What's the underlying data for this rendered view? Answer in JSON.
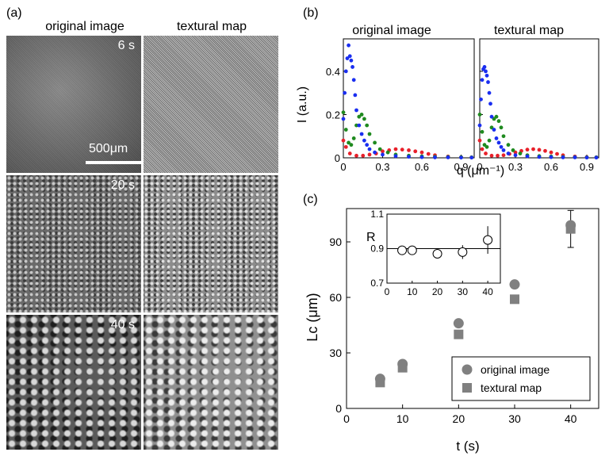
{
  "panel_a": {
    "label": "(a)",
    "col_headers": [
      "original image",
      "textural map"
    ],
    "rows": [
      {
        "time_label": "6 s"
      },
      {
        "time_label": "20 s"
      },
      {
        "time_label": "40 s"
      }
    ],
    "scale_bar_label": "500μm"
  },
  "panel_b": {
    "label": "(b)",
    "titles": [
      "original image",
      "textural map"
    ],
    "ylabel": "I (a.u.)",
    "xlabel": "q (μm⁻¹)",
    "yticks": [
      "0",
      "0.2",
      "0.4"
    ],
    "xticks": [
      "0",
      "0.3",
      "0.6",
      "0.9"
    ]
  },
  "panel_c": {
    "label": "(c)",
    "ylabel": "Lc (μm)",
    "xlabel": "t (s)",
    "yticks": [
      "0",
      "30",
      "60",
      "90"
    ],
    "xticks": [
      "0",
      "10",
      "20",
      "30",
      "40"
    ],
    "legend": [
      "original image",
      "textural map"
    ],
    "inset": {
      "ylabel": "R",
      "yticks": [
        "0.7",
        "0.9",
        "1.1"
      ],
      "xticks": [
        "0",
        "10",
        "20",
        "30",
        "40"
      ]
    }
  },
  "colors": {
    "red": "#e8202a",
    "green": "#1f8a1f",
    "blue": "#1a2ef0",
    "marker_gray": "#808080"
  },
  "chart_data": [
    {
      "type": "scatter",
      "title": "original image",
      "xlabel": "q (μm⁻¹)",
      "ylabel": "I (a.u.)",
      "xlim": [
        0,
        1.0
      ],
      "ylim": [
        0,
        0.55
      ],
      "series": [
        {
          "color": "#e8202a",
          "x": [
            0.0,
            0.02,
            0.05,
            0.1,
            0.15,
            0.2,
            0.25,
            0.3,
            0.35,
            0.4,
            0.45,
            0.5,
            0.55,
            0.6,
            0.65,
            0.7,
            0.8,
            0.9,
            0.98
          ],
          "y": [
            0.08,
            0.05,
            0.02,
            0.01,
            0.01,
            0.015,
            0.02,
            0.03,
            0.035,
            0.04,
            0.038,
            0.035,
            0.03,
            0.025,
            0.018,
            0.012,
            0.006,
            0.003,
            0.002
          ]
        },
        {
          "color": "#1f8a1f",
          "x": [
            0.0,
            0.02,
            0.04,
            0.06,
            0.08,
            0.1,
            0.12,
            0.14,
            0.16,
            0.18,
            0.2,
            0.24,
            0.28,
            0.34,
            0.4,
            0.5,
            0.6,
            0.7,
            0.8,
            0.9,
            0.98
          ],
          "y": [
            0.21,
            0.13,
            0.07,
            0.06,
            0.09,
            0.15,
            0.19,
            0.2,
            0.18,
            0.15,
            0.11,
            0.07,
            0.04,
            0.025,
            0.015,
            0.01,
            0.007,
            0.005,
            0.004,
            0.003,
            0.002
          ]
        },
        {
          "color": "#1a2ef0",
          "x": [
            0.0,
            0.01,
            0.02,
            0.03,
            0.04,
            0.05,
            0.06,
            0.07,
            0.08,
            0.09,
            0.1,
            0.12,
            0.14,
            0.16,
            0.18,
            0.2,
            0.24,
            0.3,
            0.4,
            0.5,
            0.6,
            0.7,
            0.8,
            0.9,
            0.98
          ],
          "y": [
            0.18,
            0.3,
            0.4,
            0.46,
            0.52,
            0.47,
            0.45,
            0.42,
            0.36,
            0.29,
            0.22,
            0.15,
            0.11,
            0.08,
            0.06,
            0.04,
            0.025,
            0.015,
            0.008,
            0.005,
            0.003,
            0.002,
            0.002,
            0.001,
            0.001
          ]
        }
      ]
    },
    {
      "type": "scatter",
      "title": "textural map",
      "xlabel": "q (μm⁻¹)",
      "ylabel": "I (a.u.)",
      "xlim": [
        0,
        1.0
      ],
      "ylim": [
        0,
        0.55
      ],
      "series": [
        {
          "color": "#e8202a",
          "x": [
            0.0,
            0.02,
            0.05,
            0.1,
            0.15,
            0.2,
            0.25,
            0.3,
            0.35,
            0.4,
            0.45,
            0.5,
            0.55,
            0.6,
            0.65,
            0.7,
            0.8,
            0.9,
            0.98
          ],
          "y": [
            0.08,
            0.04,
            0.02,
            0.01,
            0.01,
            0.012,
            0.018,
            0.025,
            0.032,
            0.038,
            0.04,
            0.037,
            0.032,
            0.025,
            0.018,
            0.012,
            0.006,
            0.003,
            0.002
          ]
        },
        {
          "color": "#1f8a1f",
          "x": [
            0.0,
            0.02,
            0.04,
            0.06,
            0.08,
            0.1,
            0.12,
            0.14,
            0.16,
            0.18,
            0.2,
            0.24,
            0.28,
            0.34,
            0.4,
            0.5,
            0.6,
            0.7,
            0.8,
            0.9,
            0.98
          ],
          "y": [
            0.2,
            0.12,
            0.06,
            0.05,
            0.08,
            0.14,
            0.18,
            0.19,
            0.17,
            0.14,
            0.1,
            0.06,
            0.035,
            0.02,
            0.012,
            0.008,
            0.006,
            0.004,
            0.003,
            0.002,
            0.002
          ]
        },
        {
          "color": "#1a2ef0",
          "x": [
            0.0,
            0.01,
            0.02,
            0.03,
            0.04,
            0.05,
            0.06,
            0.07,
            0.08,
            0.09,
            0.1,
            0.12,
            0.14,
            0.16,
            0.18,
            0.2,
            0.24,
            0.3,
            0.4,
            0.5,
            0.6,
            0.7,
            0.8,
            0.9,
            0.98
          ],
          "y": [
            0.15,
            0.27,
            0.36,
            0.41,
            0.42,
            0.4,
            0.38,
            0.35,
            0.3,
            0.25,
            0.19,
            0.13,
            0.09,
            0.07,
            0.05,
            0.035,
            0.02,
            0.012,
            0.007,
            0.004,
            0.003,
            0.002,
            0.002,
            0.001,
            0.001
          ]
        }
      ]
    },
    {
      "type": "scatter",
      "xlabel": "t (s)",
      "ylabel": "Lc (μm)",
      "xlim": [
        0,
        45
      ],
      "ylim": [
        0,
        108
      ],
      "series": [
        {
          "name": "original image",
          "x": [
            6,
            10,
            20,
            30,
            40
          ],
          "y": [
            16,
            24,
            46,
            67,
            99
          ]
        },
        {
          "name": "textural map",
          "x": [
            6,
            10,
            20,
            30,
            40
          ],
          "y": [
            14,
            22,
            40,
            59,
            97
          ],
          "yerr": [
            null,
            null,
            null,
            null,
            10
          ]
        }
      ]
    },
    {
      "type": "scatter",
      "xlabel": "",
      "ylabel": "R",
      "xlim": [
        0,
        45
      ],
      "ylim": [
        0.7,
        1.1
      ],
      "series": [
        {
          "x": [
            6,
            10,
            20,
            30,
            40
          ],
          "y": [
            0.89,
            0.89,
            0.87,
            0.88,
            0.95
          ],
          "yerr": [
            0.02,
            0.02,
            0.02,
            0.04,
            0.08
          ]
        }
      ],
      "reference_line": 0.9
    }
  ]
}
